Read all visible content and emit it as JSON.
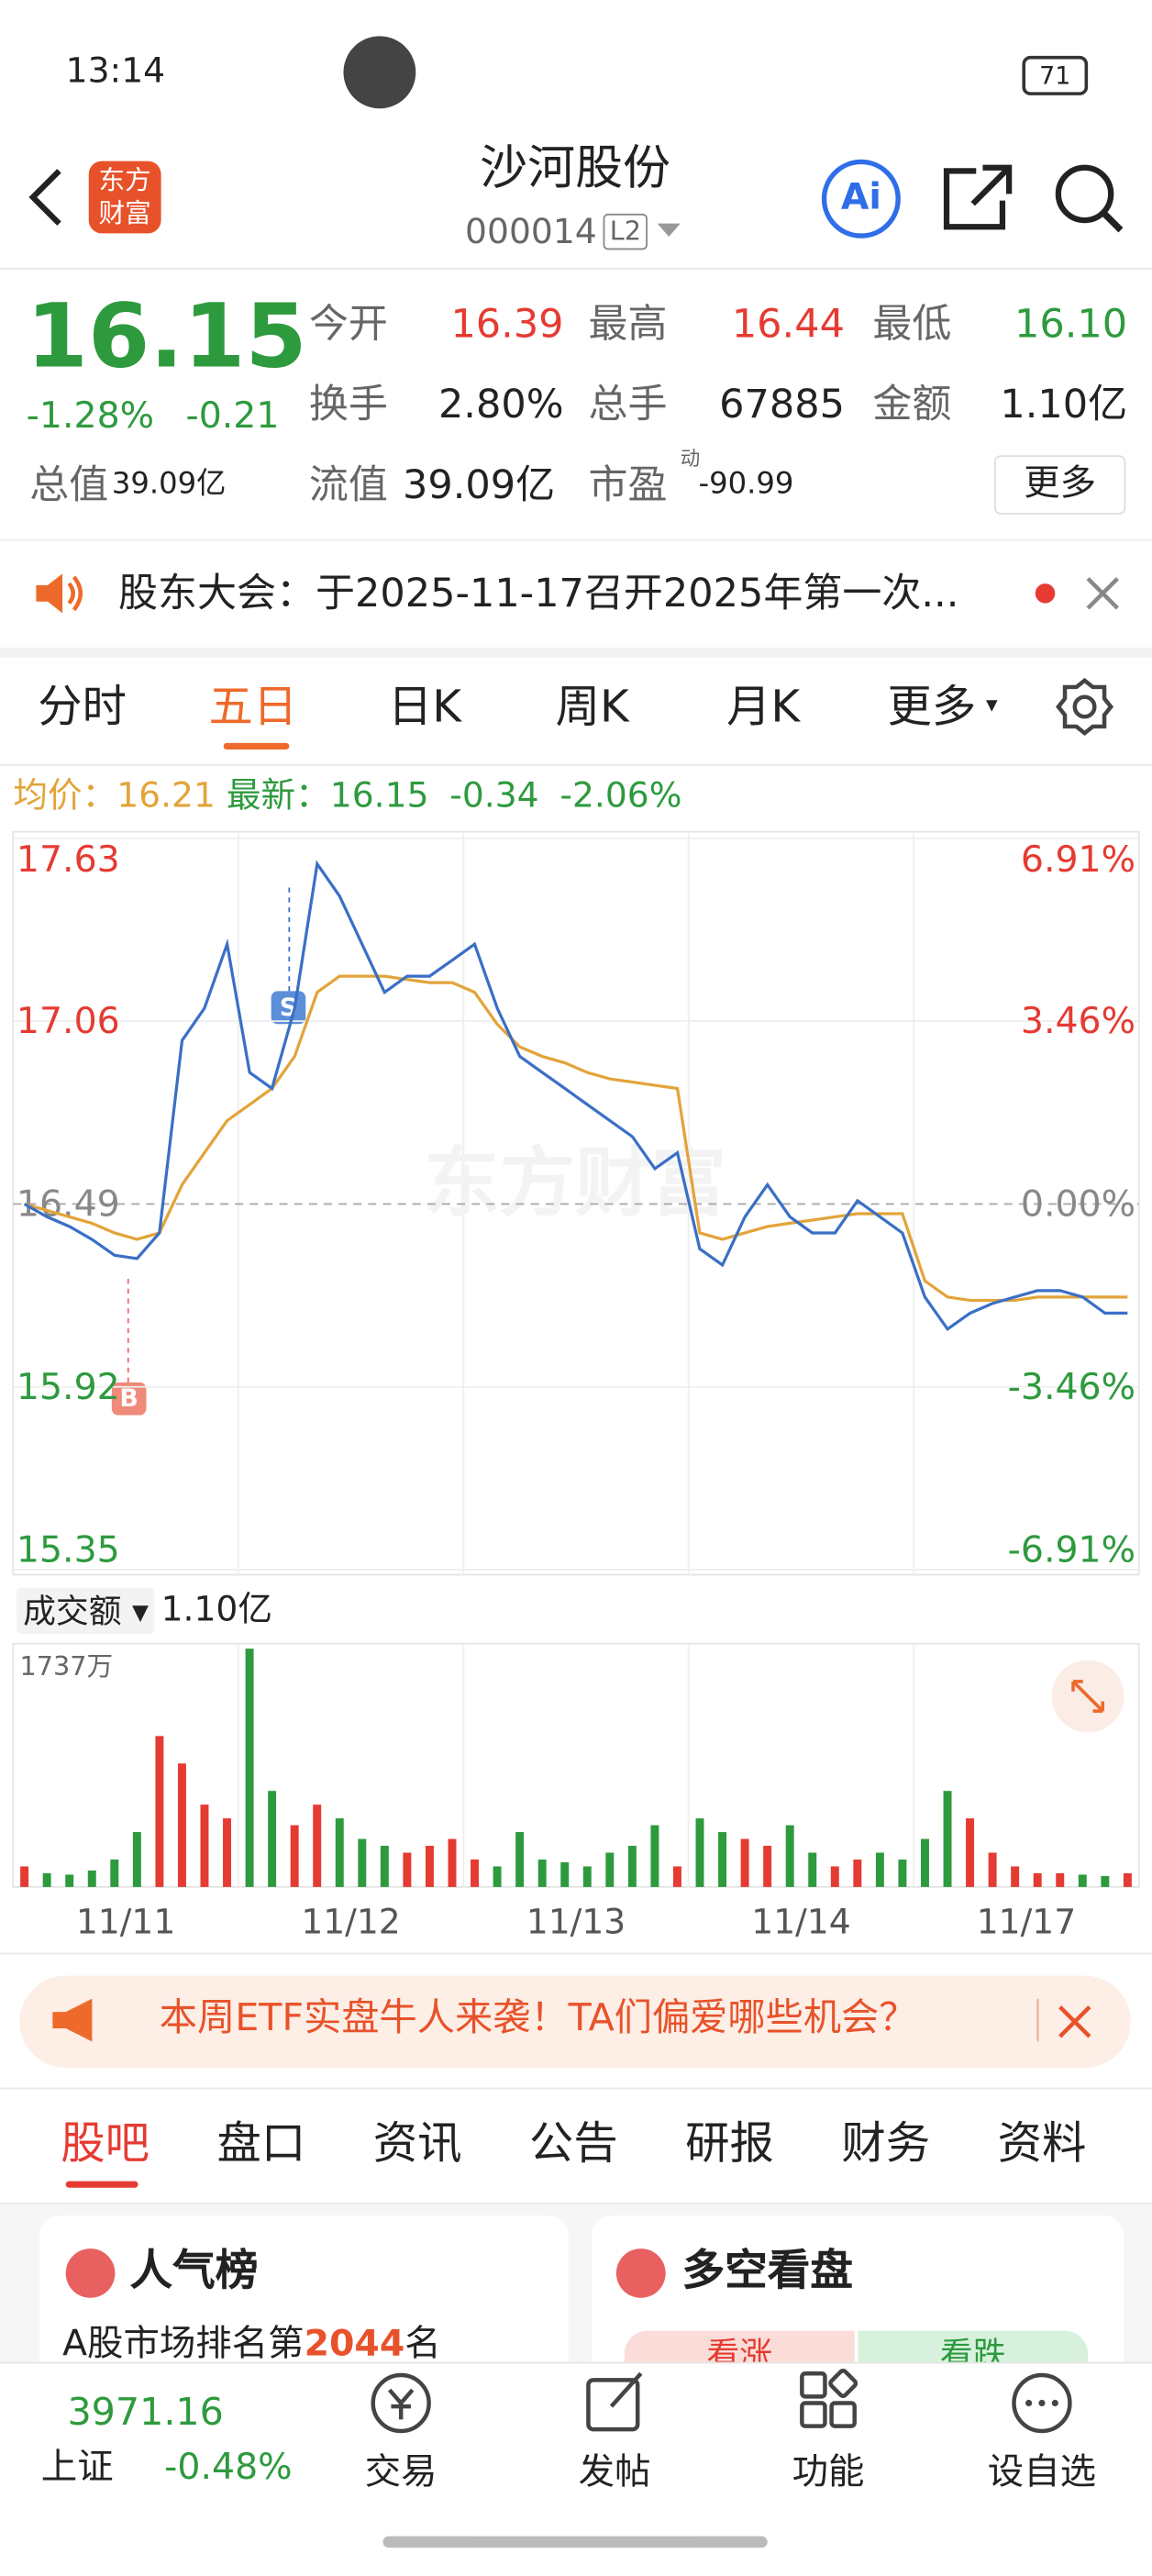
{
  "status_bar": {
    "time": "13:14",
    "battery": "71"
  },
  "header": {
    "logo": "东方财富",
    "title": "沙河股份",
    "code": "000014",
    "badge": "L2",
    "ai": "Ai"
  },
  "quote": {
    "price": "16.15",
    "change_pct": "-1.28%",
    "change": "-0.21",
    "stats": [
      {
        "label": "今开",
        "value": "16.39"
      },
      {
        "label": "最高",
        "value": "16.44"
      },
      {
        "label": "最低",
        "value": "16.10"
      },
      {
        "label": "换手",
        "value": "2.80%"
      },
      {
        "label": "总手",
        "value": "67885"
      },
      {
        "label": "金额",
        "value": "1.10亿"
      },
      {
        "label": "总值",
        "value": "39.09亿"
      },
      {
        "label": "流值",
        "value": "39.09亿"
      },
      {
        "label": "市盈",
        "sup": "动",
        "value": "-90.99"
      }
    ],
    "more": "更多"
  },
  "notice": "股东大会：于2025-11-17召开2025年第一次...",
  "tabs": [
    "分时",
    "五日",
    "日K",
    "周K",
    "月K",
    "更多"
  ],
  "summary": {
    "avg_label": "均价：",
    "avg": "16.21",
    "latest_label": "最新：",
    "latest": "16.15",
    "change": "-0.34",
    "change_pct": "-2.06%"
  },
  "chart_data": [
    {
      "type": "line",
      "watermark": "东方财富",
      "markers": [
        "B",
        "S"
      ],
      "x": [
        0.05,
        0.15,
        0.25,
        0.35,
        0.45,
        0.55,
        0.65,
        0.75,
        0.85,
        0.95,
        1.05,
        1.15,
        1.25,
        1.35,
        1.45,
        1.55,
        1.65,
        1.75,
        1.85,
        1.95,
        2.05,
        2.15,
        2.25,
        2.35,
        2.45,
        2.55,
        2.65,
        2.75,
        2.85,
        2.95,
        3.05,
        3.15,
        3.25,
        3.35,
        3.45,
        3.55,
        3.65,
        3.75,
        3.85,
        3.95,
        4.05,
        4.15,
        4.25,
        4.35,
        4.45,
        4.55,
        4.65,
        4.75,
        4.85,
        4.95
      ],
      "xlim": [
        0,
        5
      ],
      "ylim": [
        15.35,
        17.63
      ],
      "yticks": [
        17.63,
        17.06,
        16.49,
        15.92,
        15.35
      ],
      "y2lim": [
        -6.91,
        6.91
      ],
      "y2ticks": [
        {
          "value": 6.91,
          "label": "6.91%"
        },
        {
          "value": 3.46,
          "label": "3.46%"
        },
        {
          "value": 0,
          "label": "0.00%"
        },
        {
          "value": -3.46,
          "label": "-3.46%"
        },
        {
          "value": -6.91,
          "label": "-6.91%"
        }
      ],
      "series": [
        {
          "color": "#3a6fc6",
          "values": [
            16.49,
            16.45,
            16.42,
            16.38,
            16.33,
            16.32,
            16.4,
            17.0,
            17.1,
            17.3,
            16.9,
            16.85,
            17.1,
            17.55,
            17.45,
            17.3,
            17.15,
            17.2,
            17.2,
            17.25,
            17.3,
            17.1,
            16.95,
            16.9,
            16.85,
            16.8,
            16.75,
            16.7,
            16.6,
            16.65,
            16.35,
            16.3,
            16.45,
            16.55,
            16.45,
            16.4,
            16.4,
            16.5,
            16.45,
            16.4,
            16.2,
            16.1,
            16.15,
            16.18,
            16.2,
            16.22,
            16.22,
            16.2,
            16.15,
            16.15
          ]
        },
        {
          "color": "#e2a43a",
          "values": [
            16.49,
            16.47,
            16.45,
            16.43,
            16.4,
            16.38,
            16.4,
            16.55,
            16.65,
            16.75,
            16.8,
            16.85,
            16.95,
            17.15,
            17.2,
            17.2,
            17.2,
            17.19,
            17.18,
            17.18,
            17.15,
            17.05,
            16.98,
            16.95,
            16.93,
            16.9,
            16.88,
            16.87,
            16.86,
            16.85,
            16.4,
            16.38,
            16.4,
            16.42,
            16.43,
            16.44,
            16.45,
            16.46,
            16.46,
            16.46,
            16.25,
            16.2,
            16.19,
            16.19,
            16.19,
            16.2,
            16.2,
            16.2,
            16.2,
            16.2
          ]
        }
      ]
    },
    {
      "type": "bar",
      "label": "成交额",
      "total": "1.10亿",
      "max_label": "1737万",
      "up_color": "#e53b32",
      "down_color": "#2e9a3e",
      "x": [
        0.05,
        0.15,
        0.25,
        0.35,
        0.45,
        0.55,
        0.65,
        0.75,
        0.85,
        0.95,
        1.05,
        1.15,
        1.25,
        1.35,
        1.45,
        1.55,
        1.65,
        1.75,
        1.85,
        1.95,
        2.05,
        2.15,
        2.25,
        2.35,
        2.45,
        2.55,
        2.65,
        2.75,
        2.85,
        2.95,
        3.05,
        3.15,
        3.25,
        3.35,
        3.45,
        3.55,
        3.65,
        3.75,
        3.85,
        3.95,
        4.05,
        4.15,
        4.25,
        4.35,
        4.45,
        4.55,
        4.65,
        4.75,
        4.85,
        4.95
      ],
      "xlim": [
        0,
        5
      ],
      "ylim": [
        0,
        1737
      ],
      "xticks": [
        {
          "value": 0.5,
          "label": "11/11"
        },
        {
          "value": 1.5,
          "label": "11/12"
        },
        {
          "value": 2.5,
          "label": "11/13"
        },
        {
          "value": 3.5,
          "label": "11/14"
        },
        {
          "value": 4.5,
          "label": "11/17"
        }
      ],
      "values": [
        150,
        100,
        90,
        120,
        200,
        400,
        1100,
        900,
        600,
        500,
        1737,
        700,
        450,
        600,
        500,
        350,
        300,
        250,
        300,
        350,
        200,
        150,
        400,
        200,
        180,
        150,
        250,
        300,
        450,
        150,
        500,
        400,
        350,
        300,
        450,
        250,
        150,
        200,
        250,
        200,
        350,
        700,
        500,
        250,
        150,
        100,
        100,
        90,
        80,
        100
      ]
    }
  ],
  "banner": "本周ETF实盘牛人来袭！TA们偏爱哪些机会？",
  "section_tabs": [
    "股吧",
    "盘口",
    "资讯",
    "公告",
    "研报",
    "财务",
    "资料"
  ],
  "cards": {
    "popularity": {
      "title": "人气榜",
      "text": "A股市场排名第",
      "rank": "2044",
      "unit": "名"
    },
    "sentiment": {
      "title": "多空看盘",
      "up": "看涨",
      "down": "看跌"
    }
  },
  "bottom_nav": {
    "index_value": "3971.16",
    "index_name": "上证",
    "index_change": "-0.48%",
    "items": [
      "交易",
      "发帖",
      "功能",
      "设自选"
    ]
  }
}
